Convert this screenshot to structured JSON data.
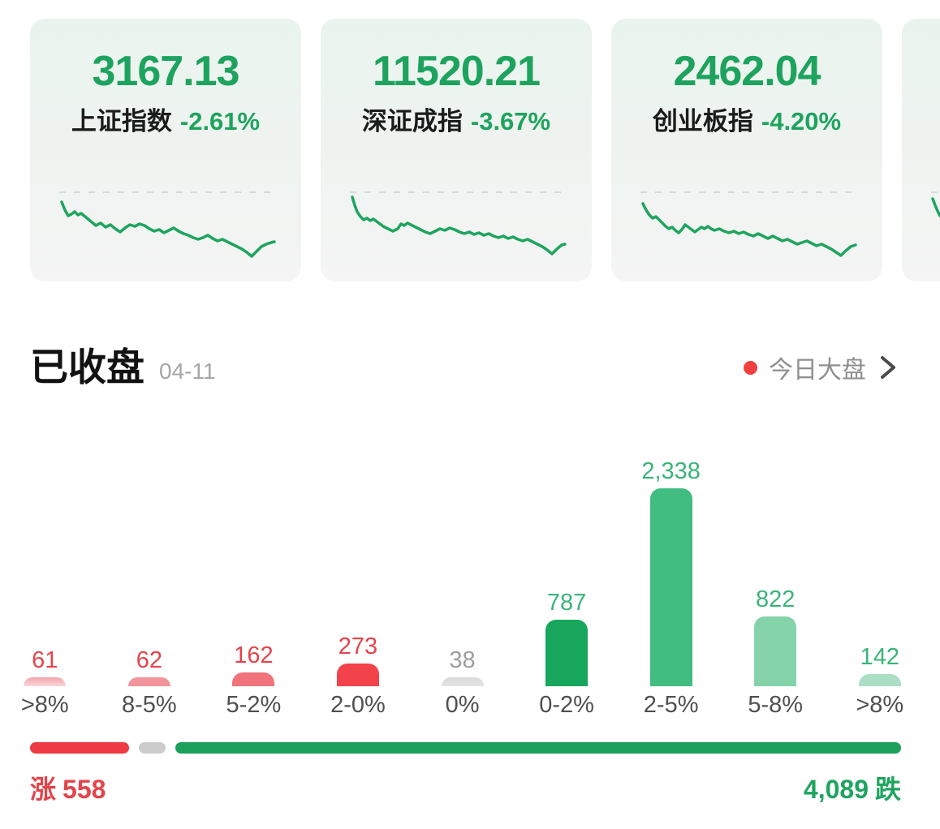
{
  "colors": {
    "index_green": "#1ea35e",
    "green": "#1fa45f",
    "red": "#e2444b",
    "gray_text": "#9e9e9e",
    "axis_label": "#4f4f4f",
    "spark_dash": "#d8d8d8",
    "progress_red": "#ee3a42",
    "progress_gray": "#cccccc",
    "progress_green": "#1ca05c",
    "dot_red": "#f23f3f"
  },
  "market_indices": [
    {
      "value": "3167.13",
      "name": "上证指数",
      "change": "-2.61%",
      "spark": [
        [
          3,
          20
        ],
        [
          7,
          30
        ],
        [
          11,
          37
        ],
        [
          15,
          35
        ],
        [
          19,
          32
        ],
        [
          23,
          36
        ],
        [
          27,
          34
        ],
        [
          33,
          39
        ],
        [
          39,
          44
        ],
        [
          45,
          49
        ],
        [
          51,
          46
        ],
        [
          57,
          51
        ],
        [
          63,
          48
        ],
        [
          69,
          53
        ],
        [
          75,
          57
        ],
        [
          81,
          52
        ],
        [
          87,
          48
        ],
        [
          93,
          50
        ],
        [
          99,
          47
        ],
        [
          105,
          49
        ],
        [
          111,
          53
        ],
        [
          117,
          56
        ],
        [
          123,
          54
        ],
        [
          129,
          58
        ],
        [
          135,
          55
        ],
        [
          141,
          52
        ],
        [
          147,
          56
        ],
        [
          153,
          59
        ],
        [
          159,
          61
        ],
        [
          165,
          64
        ],
        [
          171,
          66
        ],
        [
          177,
          64
        ],
        [
          183,
          61
        ],
        [
          189,
          65
        ],
        [
          195,
          68
        ],
        [
          201,
          66
        ],
        [
          207,
          69
        ],
        [
          213,
          72
        ],
        [
          219,
          75
        ],
        [
          225,
          78
        ],
        [
          231,
          82
        ],
        [
          237,
          87
        ],
        [
          243,
          81
        ],
        [
          249,
          75
        ],
        [
          255,
          72
        ],
        [
          261,
          70
        ],
        [
          265,
          69
        ]
      ]
    },
    {
      "value": "11520.21",
      "name": "深证成指",
      "change": "-3.67%",
      "spark": [
        [
          3,
          14
        ],
        [
          6,
          24
        ],
        [
          9,
          32
        ],
        [
          13,
          38
        ],
        [
          17,
          42
        ],
        [
          21,
          40
        ],
        [
          25,
          43
        ],
        [
          29,
          41
        ],
        [
          33,
          44
        ],
        [
          37,
          47
        ],
        [
          41,
          50
        ],
        [
          47,
          53
        ],
        [
          53,
          56
        ],
        [
          59,
          53
        ],
        [
          63,
          47
        ],
        [
          67,
          49
        ],
        [
          71,
          46
        ],
        [
          75,
          48
        ],
        [
          81,
          51
        ],
        [
          87,
          54
        ],
        [
          93,
          57
        ],
        [
          99,
          59
        ],
        [
          105,
          56
        ],
        [
          111,
          53
        ],
        [
          117,
          55
        ],
        [
          123,
          52
        ],
        [
          129,
          54
        ],
        [
          135,
          57
        ],
        [
          141,
          59
        ],
        [
          147,
          57
        ],
        [
          153,
          60
        ],
        [
          159,
          58
        ],
        [
          165,
          61
        ],
        [
          171,
          59
        ],
        [
          177,
          62
        ],
        [
          183,
          64
        ],
        [
          189,
          62
        ],
        [
          195,
          65
        ],
        [
          201,
          63
        ],
        [
          207,
          66
        ],
        [
          213,
          68
        ],
        [
          219,
          66
        ],
        [
          225,
          69
        ],
        [
          231,
          72
        ],
        [
          237,
          75
        ],
        [
          243,
          79
        ],
        [
          249,
          84
        ],
        [
          255,
          78
        ],
        [
          261,
          73
        ],
        [
          265,
          72
        ]
      ]
    },
    {
      "value": "2462.04",
      "name": "创业板指",
      "change": "-4.20%",
      "spark": [
        [
          3,
          22
        ],
        [
          7,
          30
        ],
        [
          11,
          36
        ],
        [
          15,
          40
        ],
        [
          19,
          38
        ],
        [
          23,
          42
        ],
        [
          27,
          46
        ],
        [
          31,
          50
        ],
        [
          35,
          53
        ],
        [
          39,
          51
        ],
        [
          43,
          55
        ],
        [
          47,
          58
        ],
        [
          51,
          54
        ],
        [
          55,
          48
        ],
        [
          59,
          51
        ],
        [
          63,
          54
        ],
        [
          67,
          57
        ],
        [
          71,
          54
        ],
        [
          75,
          51
        ],
        [
          79,
          53
        ],
        [
          83,
          50
        ],
        [
          87,
          53
        ],
        [
          91,
          55
        ],
        [
          97,
          53
        ],
        [
          103,
          56
        ],
        [
          109,
          58
        ],
        [
          115,
          56
        ],
        [
          121,
          59
        ],
        [
          127,
          57
        ],
        [
          133,
          60
        ],
        [
          139,
          62
        ],
        [
          145,
          59
        ],
        [
          151,
          62
        ],
        [
          157,
          65
        ],
        [
          163,
          62
        ],
        [
          169,
          65
        ],
        [
          175,
          68
        ],
        [
          181,
          66
        ],
        [
          187,
          69
        ],
        [
          193,
          72
        ],
        [
          199,
          70
        ],
        [
          205,
          68
        ],
        [
          211,
          71
        ],
        [
          217,
          74
        ],
        [
          223,
          72
        ],
        [
          229,
          75
        ],
        [
          235,
          78
        ],
        [
          241,
          82
        ],
        [
          247,
          86
        ],
        [
          253,
          80
        ],
        [
          259,
          75
        ],
        [
          265,
          73
        ]
      ]
    },
    {
      "value": "",
      "name": "",
      "change": "",
      "spark": [
        [
          2,
          16
        ],
        [
          5,
          24
        ],
        [
          8,
          31
        ],
        [
          11,
          37
        ],
        [
          15,
          42
        ],
        [
          19,
          45
        ],
        [
          24,
          46
        ],
        [
          29,
          44
        ],
        [
          34,
          41
        ]
      ]
    }
  ],
  "section": {
    "status_title": "已收盘",
    "date": "04-11",
    "market_link": "今日大盘"
  },
  "chart_data": {
    "type": "bar",
    "categories": [
      ">8%",
      "8-5%",
      "5-2%",
      "2-0%",
      "0%",
      "0-2%",
      "2-5%",
      "5-8%",
      ">8%"
    ],
    "values": [
      61,
      62,
      162,
      273,
      38,
      787,
      2338,
      822,
      142
    ],
    "display_values": [
      "61",
      "62",
      "162",
      "273",
      "38",
      "787",
      "2,338",
      "822",
      "142"
    ],
    "bar_colors": [
      "#f2a3a8",
      "#f2949c",
      "#f1737b",
      "#f2434b",
      "#d9d9d9",
      "#17a65c",
      "#41bd81",
      "#85d3ab",
      "#abdfc5"
    ],
    "bar_colors_bottom": [
      "#f8d7d9",
      "",
      "",
      "",
      "#e4e4e4",
      "",
      "",
      "",
      ""
    ],
    "value_label_colors": [
      "#e2444b",
      "#e2444b",
      "#e2444b",
      "#e2444b",
      "#9e9e9e",
      "#3ab478",
      "#3ab478",
      "#3ab478",
      "#3ab478"
    ],
    "title": "",
    "xlabel": "",
    "ylabel": "",
    "ylim": [
      0,
      2338
    ],
    "grid": false,
    "legend": "none"
  },
  "summary": {
    "up_label": "涨",
    "up_count": 558,
    "up_display": "558",
    "flat_count": 38,
    "down_label": "跌",
    "down_count": 4089,
    "down_display": "4,089"
  }
}
